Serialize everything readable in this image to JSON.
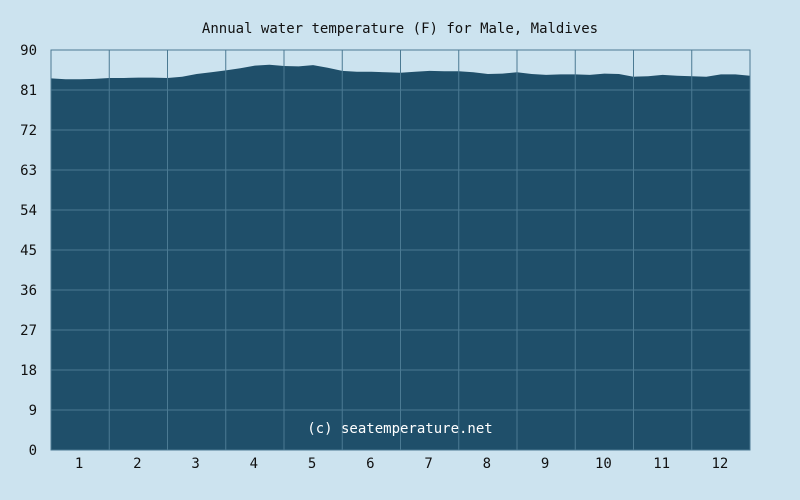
{
  "chart_data": {
    "type": "area",
    "title": "Annual water temperature (F) for Male, Maldives",
    "xlabel": "",
    "ylabel": "",
    "ylim": [
      0,
      90
    ],
    "yticks": [
      "0",
      "9",
      "18",
      "27",
      "36",
      "45",
      "54",
      "63",
      "72",
      "81",
      "90"
    ],
    "xlim": [
      0.5,
      12.5
    ],
    "xticks": [
      "1",
      "2",
      "3",
      "4",
      "5",
      "6",
      "7",
      "8",
      "9",
      "10",
      "11",
      "12"
    ],
    "grid": true,
    "colors": {
      "fill": "#1f4f6a",
      "grid": "#4b7a93",
      "background": "#cce3ef"
    },
    "x": [
      0.5,
      0.75,
      1.0,
      1.25,
      1.5,
      1.75,
      2.0,
      2.25,
      2.5,
      2.75,
      3.0,
      3.25,
      3.5,
      3.75,
      4.0,
      4.25,
      4.5,
      4.75,
      5.0,
      5.25,
      5.5,
      5.75,
      6.0,
      6.25,
      6.5,
      6.75,
      7.0,
      7.25,
      7.5,
      7.75,
      8.0,
      8.25,
      8.5,
      8.75,
      9.0,
      9.25,
      9.5,
      9.75,
      10.0,
      10.25,
      10.5,
      10.75,
      11.0,
      11.25,
      11.5,
      11.75,
      12.0,
      12.25,
      12.5
    ],
    "values": [
      83.6,
      83.4,
      83.4,
      83.5,
      83.7,
      83.7,
      83.8,
      83.8,
      83.7,
      84.0,
      84.6,
      85.0,
      85.4,
      85.9,
      86.5,
      86.7,
      86.4,
      86.3,
      86.6,
      86.0,
      85.3,
      85.1,
      85.1,
      85.0,
      84.9,
      85.1,
      85.3,
      85.2,
      85.2,
      85.0,
      84.6,
      84.7,
      85.0,
      84.6,
      84.4,
      84.5,
      84.5,
      84.4,
      84.7,
      84.6,
      84.0,
      84.1,
      84.4,
      84.2,
      84.1,
      84.0,
      84.5,
      84.5,
      84.2
    ],
    "watermark": "(c) seatemperature.net"
  }
}
